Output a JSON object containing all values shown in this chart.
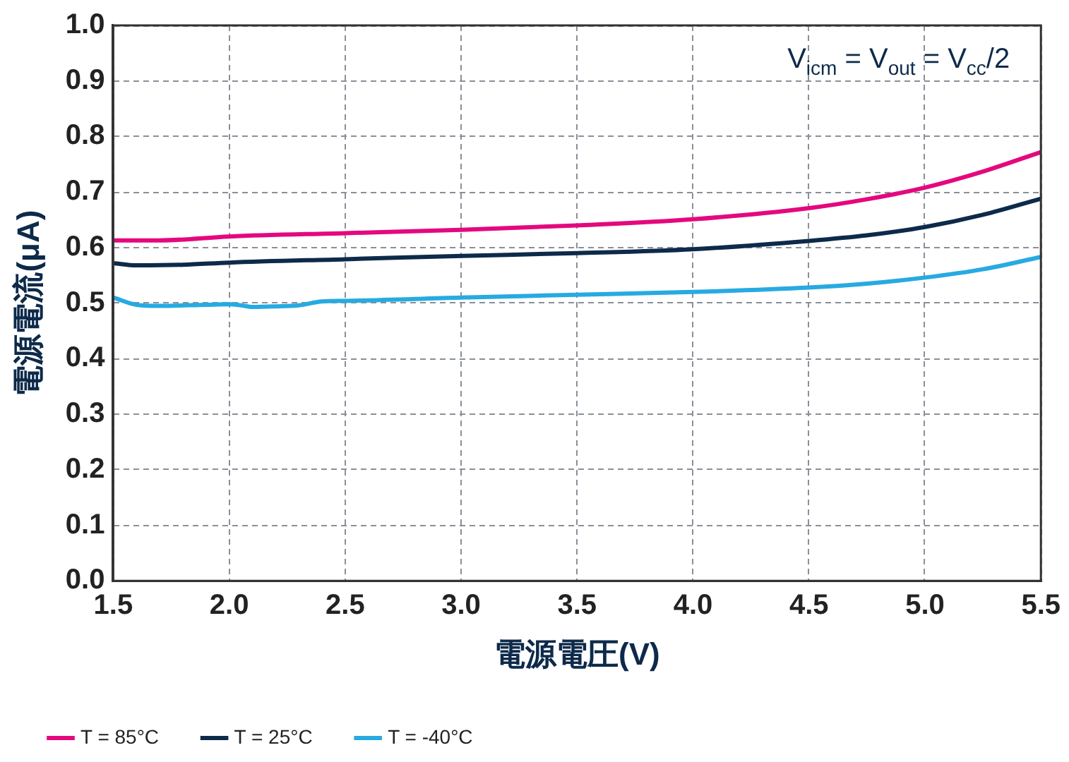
{
  "chart_data": {
    "type": "line",
    "xlabel": "電源電圧(V)",
    "ylabel": "電源電流(μA)",
    "annotations": [
      "V$_{icm}$ = V$_{out}$ = V$_{cc}$/2"
    ],
    "xlim": [
      1.5,
      5.5
    ],
    "ylim": [
      0,
      1.0
    ],
    "xticks": [
      {
        "value": 1.5,
        "label": "1.5"
      },
      {
        "value": 2,
        "label": "2.0"
      },
      {
        "value": 2.5,
        "label": "2.5"
      },
      {
        "value": 3,
        "label": "3.0"
      },
      {
        "value": 3.5,
        "label": "3.5"
      },
      {
        "value": 4,
        "label": "4.0"
      },
      {
        "value": 4.5,
        "label": "4.5"
      },
      {
        "value": 5,
        "label": "5.0"
      },
      {
        "value": 5.5,
        "label": "5.5"
      }
    ],
    "yticks": [
      {
        "value": 0,
        "label": "0.0"
      },
      {
        "value": 0.1,
        "label": "0.1"
      },
      {
        "value": 0.2,
        "label": "0.2"
      },
      {
        "value": 0.3,
        "label": "0.3"
      },
      {
        "value": 0.4,
        "label": "0.4"
      },
      {
        "value": 0.5,
        "label": "0.5"
      },
      {
        "value": 0.6,
        "label": "0.6"
      },
      {
        "value": 0.7,
        "label": "0.7"
      },
      {
        "value": 0.8,
        "label": "0.8"
      },
      {
        "value": 0.9,
        "label": "0.9"
      },
      {
        "value": 1,
        "label": "1.0"
      }
    ],
    "grid": true,
    "legend": "bottom",
    "marker": "none",
    "line_style": "solid",
    "series": [
      {
        "name": "T = 85°C",
        "color": "#e4087e",
        "x": [
          1.5,
          1.7,
          2.0,
          2.5,
          3.0,
          3.5,
          4.0,
          4.5,
          4.75,
          5.0,
          5.25,
          5.5
        ],
        "values": [
          0.613,
          0.613,
          0.62,
          0.626,
          0.632,
          0.64,
          0.651,
          0.671,
          0.687,
          0.708,
          0.737,
          0.772
        ]
      },
      {
        "name": "T = 25°C",
        "color": "#0d2a4a",
        "x": [
          1.5,
          1.6,
          1.8,
          2.0,
          2.5,
          3.0,
          3.5,
          4.0,
          4.5,
          4.75,
          5.0,
          5.25,
          5.5
        ],
        "values": [
          0.572,
          0.568,
          0.569,
          0.573,
          0.579,
          0.585,
          0.59,
          0.597,
          0.612,
          0.622,
          0.637,
          0.659,
          0.688
        ]
      },
      {
        "name": "T = -40°C",
        "color": "#27aae1",
        "x": [
          1.5,
          1.6,
          1.7,
          1.9,
          2.0,
          2.05,
          2.1,
          2.2,
          2.3,
          2.4,
          2.5,
          3.0,
          3.5,
          4.0,
          4.5,
          4.75,
          5.0,
          5.25,
          5.5
        ],
        "values": [
          0.51,
          0.497,
          0.495,
          0.497,
          0.498,
          0.496,
          0.493,
          0.494,
          0.496,
          0.503,
          0.504,
          0.51,
          0.515,
          0.52,
          0.528,
          0.535,
          0.546,
          0.561,
          0.583
        ]
      }
    ]
  }
}
